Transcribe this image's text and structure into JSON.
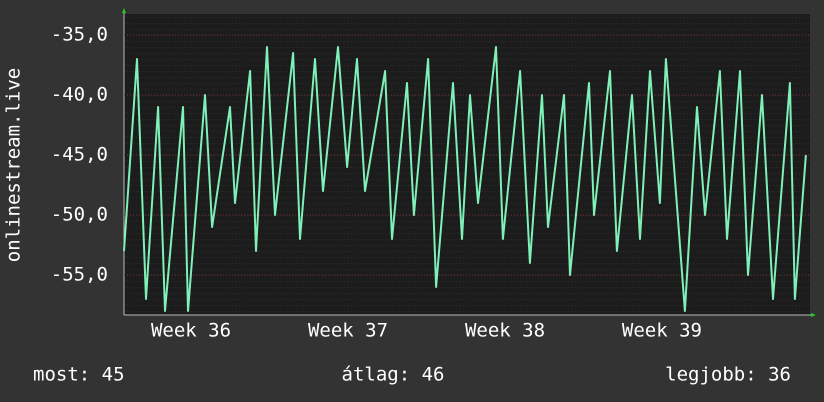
{
  "chart_data": {
    "type": "line",
    "y_label": "onlinestream.live",
    "x": [
      36.073,
      36.156,
      36.213,
      36.29,
      36.334,
      36.449,
      36.481,
      36.589,
      36.634,
      36.748,
      36.78,
      36.876,
      36.914,
      36.984,
      37.035,
      37.15,
      37.194,
      37.29,
      37.341,
      37.436,
      37.494,
      37.557,
      37.608,
      37.736,
      37.78,
      37.876,
      37.92,
      38.01,
      38.061,
      38.169,
      38.226,
      38.277,
      38.328,
      38.443,
      38.487,
      38.596,
      38.659,
      38.736,
      38.774,
      38.876,
      38.914,
      39.035,
      39.067,
      39.169,
      39.213,
      39.309,
      39.36,
      39.424,
      39.487,
      39.525,
      39.646,
      39.723,
      39.774,
      39.869,
      39.914,
      39.997,
      40.048,
      40.137,
      40.207,
      40.315,
      40.347,
      40.417
    ],
    "series": [
      {
        "color": "#7ff0b8",
        "values": [
          -53,
          -37,
          -57,
          -41,
          -58,
          -41,
          -58,
          -40,
          -51,
          -41,
          -49,
          -38,
          -53,
          -36,
          -50,
          -36.5,
          -52,
          -37,
          -48,
          -36,
          -46,
          -37,
          -48,
          -38,
          -52,
          -39,
          -50,
          -37,
          -56,
          -39,
          -52,
          -40,
          -49,
          -36,
          -52,
          -38,
          -54,
          -40,
          -51,
          -40,
          -55,
          -39,
          -50,
          -38,
          -53,
          -40,
          -52,
          -38,
          -49,
          -37,
          -58,
          -41,
          -50,
          -38,
          -52,
          -38,
          -55,
          -40,
          -57,
          -39,
          -57,
          -45
        ]
      }
    ],
    "xlim": [
      36.073,
      40.443
    ],
    "xticks": [
      {
        "value": 36.5,
        "label": "Week 36"
      },
      {
        "value": 37.5,
        "label": "Week 37"
      },
      {
        "value": 38.5,
        "label": "Week 38"
      },
      {
        "value": 39.5,
        "label": "Week 39"
      }
    ],
    "ylim": [
      -58.33,
      -33.25
    ],
    "yticks": [
      {
        "value": -55,
        "label": "-55,0"
      },
      {
        "value": -50,
        "label": "-50,0"
      },
      {
        "value": -45,
        "label": "-45,0"
      },
      {
        "value": -40,
        "label": "-40,0"
      },
      {
        "value": -35,
        "label": "-35,0"
      }
    ],
    "grid": true,
    "footer": [
      "most: 45",
      "átlag: 46",
      "legjobb: 36"
    ]
  }
}
